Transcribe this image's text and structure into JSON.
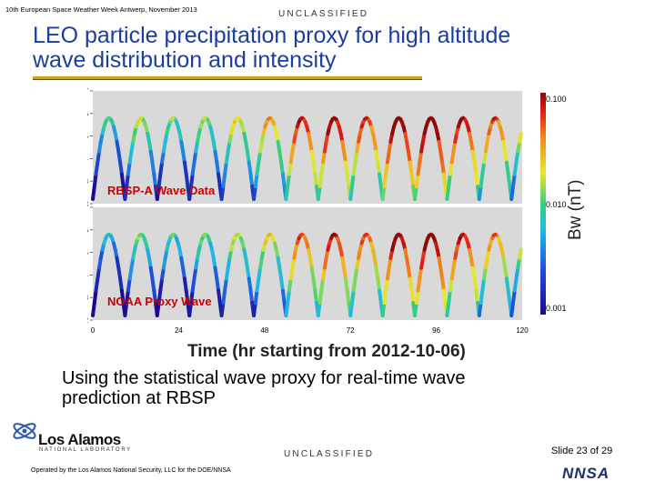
{
  "header": {
    "conference": "10th European Space Weather Week Antwerp, November 2013",
    "classification": "UNCLASSIFIED",
    "title_line1": "LEO particle precipitation proxy for high altitude",
    "title_line2": "wave distribution and intensity"
  },
  "figure": {
    "panel_top_label": "RBSP-A Wave Data",
    "panel_bottom_label": "NOAA Proxy Wave",
    "ylabel": "L*",
    "y_ticks": [
      "2",
      "3",
      "4",
      "5",
      "6",
      "7"
    ],
    "x_ticks": [
      "0",
      "24",
      "48",
      "72",
      "96",
      "120"
    ],
    "xlabel": "Time (hr starting from 2012-10-06)",
    "colorbar_label": "Bw (nT)",
    "colorbar_ticks": [
      "0.100",
      "0.010",
      "0.001"
    ]
  },
  "chart_data": {
    "type": "heatmap",
    "title": "",
    "xlabel": "Time (hr starting from 2012-10-06)",
    "ylabel": "L*",
    "xlim": [
      0,
      120
    ],
    "ylim": [
      2,
      7
    ],
    "colorbar": {
      "label": "Bw (nT)",
      "ticks": [
        0.1,
        0.01,
        0.001
      ],
      "scale": "log",
      "range": [
        0.001,
        0.1
      ]
    },
    "panels": [
      {
        "name": "RBSP-A Wave Data",
        "orbit_period_hr": 9,
        "orbit_start_hr": 0,
        "orbit_intensity": [
          0.003,
          0.006,
          0.004,
          0.005,
          0.008,
          0.012,
          0.03,
          0.04,
          0.025,
          0.05,
          0.06,
          0.035,
          0.02,
          0.01
        ]
      },
      {
        "name": "NOAA Proxy Wave",
        "orbit_period_hr": 9,
        "orbit_start_hr": 0,
        "orbit_intensity": [
          0.002,
          0.004,
          0.003,
          0.004,
          0.006,
          0.008,
          0.02,
          0.03,
          0.02,
          0.04,
          0.05,
          0.03,
          0.015,
          0.008
        ]
      }
    ]
  },
  "caption": {
    "line1": "Using the statistical wave proxy for real-time wave",
    "line2": "prediction at RBSP"
  },
  "footer": {
    "lab_name": "Los Alamos",
    "lab_sub": "NATIONAL LABORATORY",
    "operated_by": "Operated by the Los Alamos National Security, LLC for the DOE/NNSA",
    "nnsa_logo_text": "NNSA",
    "slide_label": "Slide 23 of 29"
  },
  "colors": {
    "title": "#1a3ea0",
    "rule": "#c9a227",
    "panel_bg": "#d9d9d9",
    "label_red": "#cc0000"
  }
}
